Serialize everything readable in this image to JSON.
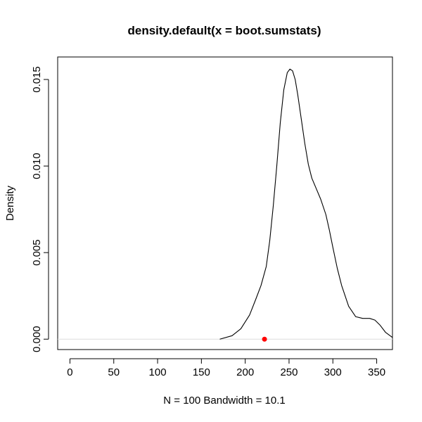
{
  "chart_data": {
    "type": "line",
    "title": "density.default(x = boot.sumstats)",
    "xlabel": "N = 100   Bandwidth = 10.1",
    "ylabel": "Density",
    "xlim": [
      -14,
      368
    ],
    "ylim": [
      -0.0006,
      0.0163
    ],
    "xticks": [
      0,
      50,
      100,
      150,
      200,
      250,
      300,
      350
    ],
    "xtick_labels": [
      "0",
      "50",
      "100",
      "150",
      "200",
      "250",
      "300",
      "350"
    ],
    "yticks": [
      0,
      0.005,
      0.01,
      0.015
    ],
    "ytick_labels": [
      "0.000",
      "0.005",
      "0.010",
      "0.015"
    ],
    "grid": false,
    "legend": "none",
    "series": [
      {
        "color": "#000000",
        "x": [
          171,
          185,
          195,
          205,
          212,
          218,
          224,
          228,
          232,
          236,
          240,
          244,
          248,
          251,
          254,
          257,
          260,
          264,
          268,
          272,
          276,
          281,
          286,
          292,
          296,
          300,
          305,
          310,
          318,
          326,
          334,
          342,
          348,
          354,
          360,
          368
        ],
        "y": [
          0.0,
          0.0002,
          0.0006,
          0.0014,
          0.0023,
          0.0031,
          0.0042,
          0.0057,
          0.0077,
          0.01,
          0.0125,
          0.0144,
          0.0154,
          0.0156,
          0.0155,
          0.015,
          0.0141,
          0.0127,
          0.0113,
          0.0101,
          0.0093,
          0.0087,
          0.0081,
          0.0072,
          0.0063,
          0.0053,
          0.0041,
          0.0031,
          0.0019,
          0.0013,
          0.0012,
          0.0012,
          0.0011,
          0.0008,
          0.0004,
          0.0001
        ]
      }
    ],
    "baseline": {
      "y": 0,
      "color": "#dddddd"
    },
    "points": [
      {
        "x": 222,
        "y": 0,
        "color": "#ff0000"
      }
    ]
  }
}
